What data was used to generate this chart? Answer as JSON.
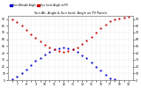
{
  "title": "Sun Alt. Angle & Sun Incid. Angle on PV Panels",
  "legend_blue": "Sun Altitude Angle",
  "legend_red": "Sun Incid. Angle on PV",
  "background_color": "#ffffff",
  "grid_color": "#cccccc",
  "plot_bg": "#ffffff",
  "blue_color": "#0000cc",
  "red_color": "#cc0000",
  "text_color": "#000000",
  "x_values": [
    6.5,
    7.0,
    7.5,
    8.0,
    8.5,
    9.0,
    9.5,
    10.0,
    10.5,
    11.0,
    11.5,
    12.0,
    12.5,
    13.0,
    13.5,
    14.0,
    14.5,
    15.0,
    15.5,
    16.0,
    16.5,
    17.0,
    17.5,
    18.0,
    18.5,
    19.0
  ],
  "blue_y": [
    1,
    5,
    10,
    16,
    22,
    28,
    33,
    38,
    42,
    45,
    47,
    48,
    47,
    45,
    42,
    37,
    32,
    26,
    20,
    14,
    8,
    3,
    1,
    -1,
    -2,
    -3
  ],
  "red_y": [
    89,
    85,
    80,
    74,
    68,
    62,
    57,
    52,
    48,
    45,
    43,
    42,
    43,
    45,
    48,
    53,
    58,
    64,
    70,
    76,
    82,
    87,
    89,
    91,
    92,
    93
  ],
  "xlim": [
    6.0,
    19.5
  ],
  "ylim": [
    0,
    95
  ],
  "right_ylim": [
    0,
    95
  ],
  "x_ticks": [
    6.5,
    7.0,
    7.5,
    8.0,
    8.5,
    9.0,
    9.5,
    10.0,
    10.5,
    11.0,
    11.5,
    12.0,
    12.5,
    13.0,
    13.5,
    14.0,
    14.5,
    15.0,
    15.5,
    16.0,
    16.5,
    17.0,
    17.5,
    18.0,
    18.5,
    19.0
  ],
  "y_ticks": [
    0,
    10,
    20,
    30,
    40,
    50,
    60,
    70,
    80,
    90
  ],
  "right_y_ticks": [
    0,
    10,
    20,
    30,
    40,
    50,
    60,
    70,
    80,
    90
  ]
}
